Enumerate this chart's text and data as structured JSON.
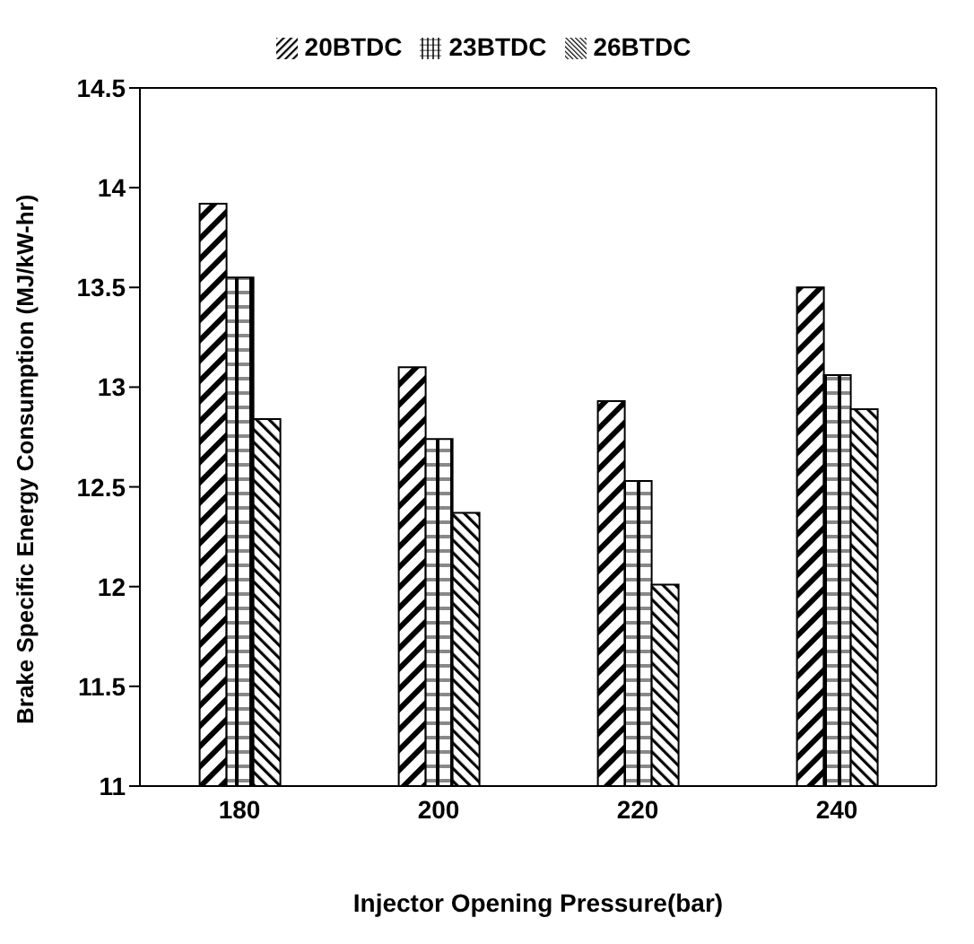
{
  "chart_data": {
    "type": "bar",
    "xlabel": "Injector Opening Pressure(bar)",
    "ylabel": "Brake Specific Energy Consumption (MJ/kW-hr)",
    "categories": [
      "180",
      "200",
      "220",
      "240"
    ],
    "series": [
      {
        "name": "20BTDC",
        "color": "#000000",
        "values": [
          13.92,
          13.1,
          12.93,
          13.5
        ]
      },
      {
        "name": "23BTDC",
        "color": "#000000",
        "values": [
          13.55,
          12.74,
          12.53,
          13.06
        ]
      },
      {
        "name": "26BTDC",
        "color": "#000000",
        "values": [
          12.84,
          12.37,
          12.01,
          12.89
        ]
      }
    ],
    "ylim": [
      11,
      14.5
    ],
    "yticks": [
      11,
      11.5,
      12,
      12.5,
      13,
      13.5,
      14,
      14.5
    ],
    "grid": false,
    "legend": "top"
  }
}
